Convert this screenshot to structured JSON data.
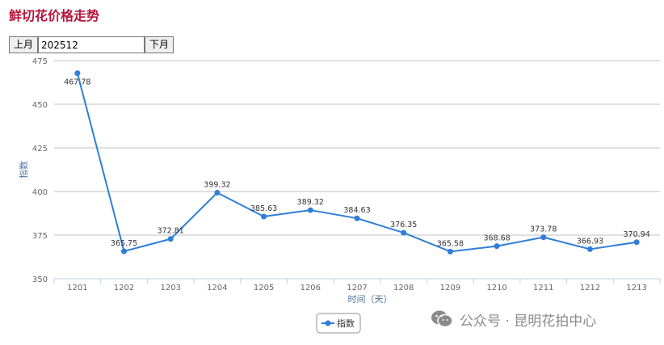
{
  "title": "鲜切花价格走势",
  "controls": {
    "prev_label": "上月",
    "month_value": "202512",
    "next_label": "下月"
  },
  "watermark": {
    "text": "公众号 · 昆明花拍中心"
  },
  "chart_data": {
    "type": "line",
    "categories": [
      "1201",
      "1202",
      "1203",
      "1204",
      "1205",
      "1206",
      "1207",
      "1208",
      "1209",
      "1210",
      "1211",
      "1212",
      "1213"
    ],
    "series": [
      {
        "name": "指数",
        "values": [
          467.78,
          365.75,
          372.81,
          399.32,
          385.63,
          389.32,
          384.63,
          376.35,
          365.58,
          368.68,
          373.78,
          366.93,
          370.94
        ],
        "labels": [
          "467.78",
          "365.75",
          "372.81",
          "399.32",
          "385.63",
          "389.32",
          "384.63",
          "376.35",
          "365.58",
          "368.68",
          "373.78",
          "366.93",
          "370.94"
        ]
      }
    ],
    "xlabel": "时间（天）",
    "ylabel": "指数",
    "ylim": [
      350,
      475
    ],
    "yticks": [
      "350",
      "375",
      "400",
      "425",
      "450",
      "475"
    ],
    "grid": true,
    "legend": "bottom-center",
    "colors": {
      "line": "#2f7ed8",
      "grid": "#c0c0c0",
      "axis": "#c0d0e0",
      "tick_text": "#666666",
      "data_label": "#333333",
      "title": "#b5163d",
      "axis_title": "#4d759e"
    }
  }
}
